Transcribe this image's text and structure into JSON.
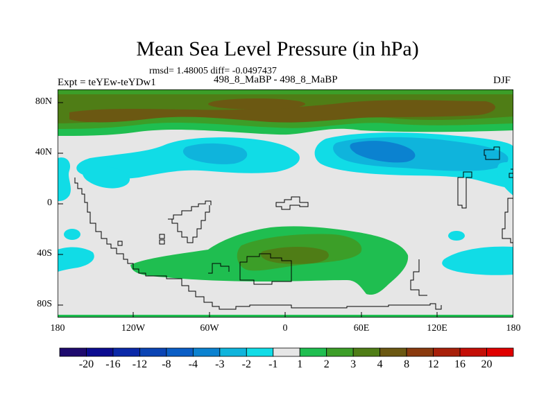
{
  "title": "Mean Sea Level Pressure (in hPa)",
  "stats_line": "rmsd= 1.48005 diff= -0.0497437",
  "left_label": "Expt = teYEw-teYDw1",
  "center_label": "498_8_MaBP - 498_8_MaBP",
  "right_label": "DJF",
  "y_ticks": [
    "80N",
    "40N",
    "0",
    "40S",
    "80S"
  ],
  "x_ticks": [
    "180",
    "120W",
    "60W",
    "0",
    "60E",
    "120E",
    "180"
  ],
  "colorbar": {
    "labels": [
      "-20",
      "-16",
      "-12",
      "-8",
      "-4",
      "-3",
      "-2",
      "-1",
      "1",
      "2",
      "3",
      "4",
      "8",
      "12",
      "16",
      "20"
    ],
    "colors": [
      "#1e0a6e",
      "#0c0c90",
      "#0a28a8",
      "#0a44b4",
      "#0a5ec6",
      "#0b82d0",
      "#0fb4dc",
      "#11dce6",
      "#e6e6e6",
      "#1fbe50",
      "#3c9e28",
      "#4f7d16",
      "#6b5812",
      "#8a3a0e",
      "#a8200a",
      "#c40e06",
      "#e00000"
    ]
  },
  "chart_data": {
    "type": "heatmap",
    "title": "Mean Sea Level Pressure (in hPa)",
    "units": "hPa",
    "x_range_lon": [
      -180,
      180
    ],
    "y_range_lat": [
      -90,
      90
    ],
    "contour_levels": [
      -20,
      -16,
      -12,
      -8,
      -4,
      -3,
      -2,
      -1,
      1,
      2,
      3,
      4,
      8,
      12,
      16,
      20
    ],
    "anomaly_regions": [
      {
        "name": "northern-high-latitude-positive",
        "value_range": "3 to 4",
        "extent": "about 70N-90N, all longitudes"
      },
      {
        "name": "north-pacific-negative",
        "value_range": "-2 to -3",
        "extent": "about 30N-50N, 150W-40W"
      },
      {
        "name": "north-asia-negative",
        "value_range": "-3 to -4",
        "extent": "about 30N-50N, 40E-130E"
      },
      {
        "name": "southern-positive",
        "value_range": "2 to 3",
        "extent": "about 30S-70S, 130W-100E"
      }
    ]
  }
}
